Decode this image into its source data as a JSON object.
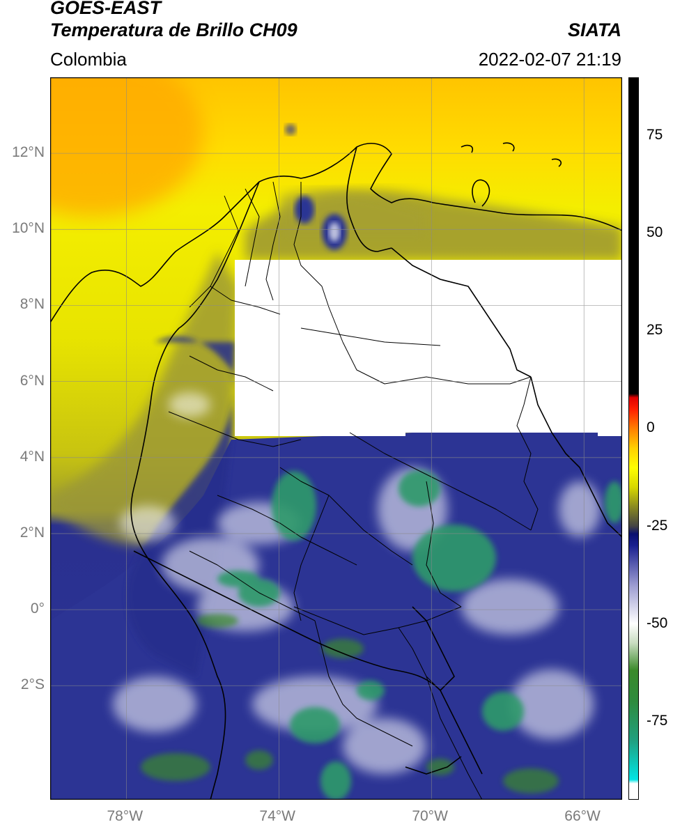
{
  "header": {
    "satellite": "GOES-EAST",
    "product": "Temperatura de Brillo CH09",
    "organization": "SIATA",
    "region": "Colombia",
    "datetime": "2022-02-07 21:19"
  },
  "map": {
    "lon_range": [
      -80,
      -65
    ],
    "lat_range": [
      -5,
      14
    ],
    "lat_ticks": [
      {
        "value": 12,
        "label": "12°N"
      },
      {
        "value": 10,
        "label": "10°N"
      },
      {
        "value": 8,
        "label": "8°N"
      },
      {
        "value": 6,
        "label": "6°N"
      },
      {
        "value": 4,
        "label": "4°N"
      },
      {
        "value": 2,
        "label": "2°N"
      },
      {
        "value": 0,
        "label": "0°"
      },
      {
        "value": -2,
        "label": "2°S"
      }
    ],
    "lon_ticks": [
      {
        "value": -78,
        "label": "78°W"
      },
      {
        "value": -74,
        "label": "74°W"
      },
      {
        "value": -70,
        "label": "70°W"
      },
      {
        "value": -66,
        "label": "66°W"
      }
    ]
  },
  "colorbar": {
    "range": [
      -95,
      90
    ],
    "ticks": [
      {
        "value": 75,
        "label": "75"
      },
      {
        "value": 50,
        "label": "50"
      },
      {
        "value": 25,
        "label": "25"
      },
      {
        "value": 0,
        "label": "0"
      },
      {
        "value": -25,
        "label": "-25"
      },
      {
        "value": -50,
        "label": "-50"
      },
      {
        "value": -75,
        "label": "-75"
      }
    ],
    "stops": [
      {
        "value": -95,
        "color": "#ffffff"
      },
      {
        "value": -91,
        "color": "#ffffff"
      },
      {
        "value": -90,
        "color": "#00e5e5"
      },
      {
        "value": -80,
        "color": "#20a080"
      },
      {
        "value": -70,
        "color": "#2e8b3e"
      },
      {
        "value": -62,
        "color": "#3a8a2a"
      },
      {
        "value": -55,
        "color": "#c8dcc0"
      },
      {
        "value": -50,
        "color": "#ffffff"
      },
      {
        "value": -40,
        "color": "#9a9ad0"
      },
      {
        "value": -30,
        "color": "#1a2090"
      },
      {
        "value": -27,
        "color": "#0a1070"
      },
      {
        "value": -25,
        "color": "#444444"
      },
      {
        "value": -20,
        "color": "#8a8a20"
      },
      {
        "value": -15,
        "color": "#d8d800"
      },
      {
        "value": -10,
        "color": "#ffff00"
      },
      {
        "value": -5,
        "color": "#ffd000"
      },
      {
        "value": 0,
        "color": "#ff8000"
      },
      {
        "value": 5,
        "color": "#ff2000"
      },
      {
        "value": 8,
        "color": "#e00000"
      },
      {
        "value": 9,
        "color": "#000000"
      },
      {
        "value": 90,
        "color": "#000000"
      }
    ]
  },
  "colors": {
    "cold_top": "#1a2090",
    "very_cold": "#2e8b3e",
    "clear_sky": "#ffff00",
    "missing_data": "#ffffff"
  }
}
